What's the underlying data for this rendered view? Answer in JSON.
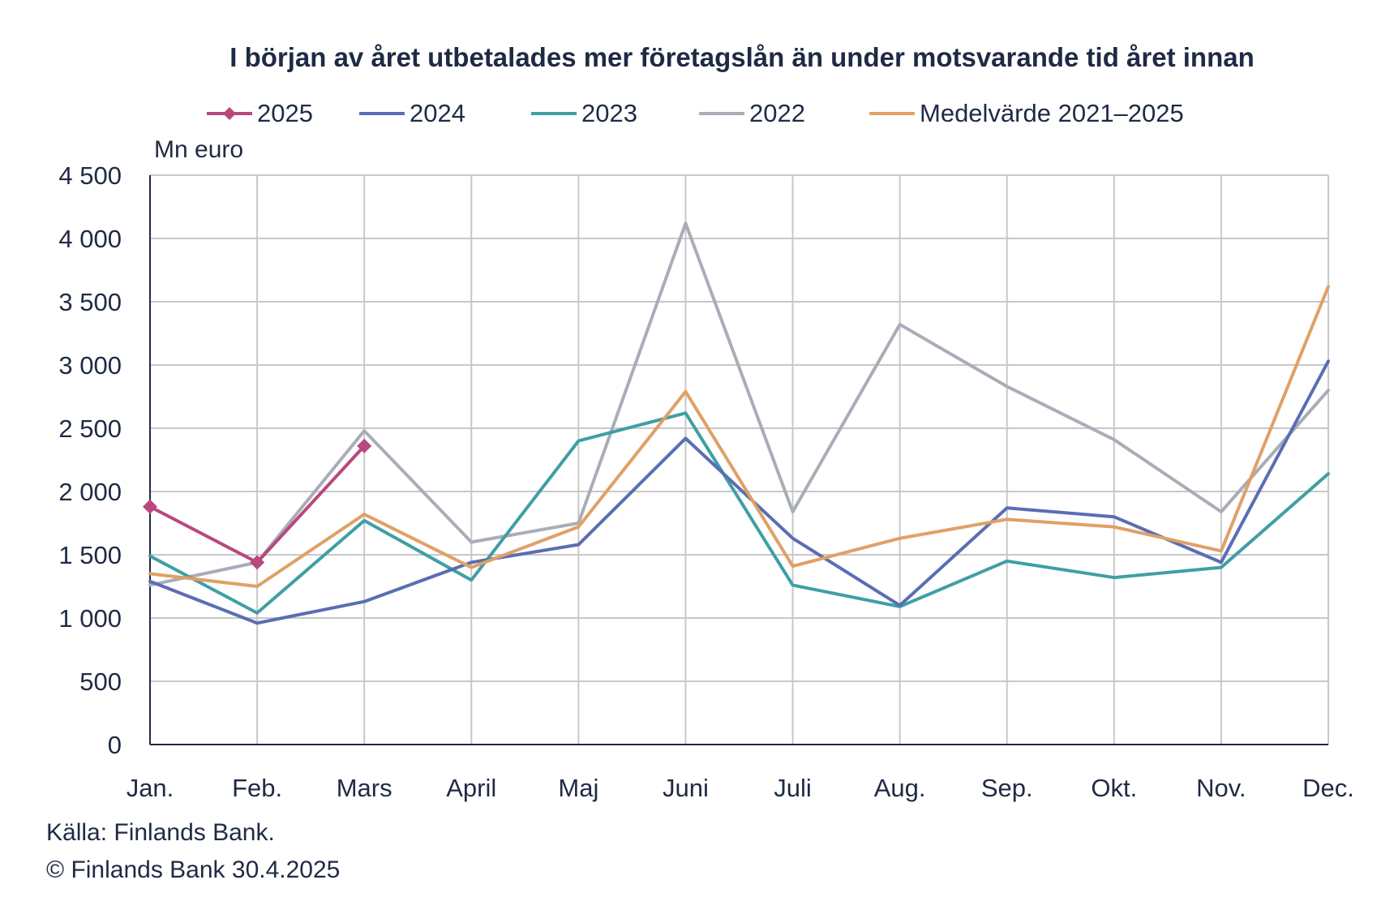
{
  "title": "I början av året utbetalades mer företagslån än under motsvarande tid året innan",
  "unit_label": "Mn euro",
  "source": "Källa: Finlands Bank.",
  "copyright": "© Finlands Bank 30.4.2025",
  "chart_data": {
    "type": "line",
    "title": "I början av året utbetalades mer företagslån än under motsvarande tid året innan",
    "ylabel": "Mn euro",
    "ylim": [
      0,
      4500
    ],
    "yticks": [
      0,
      500,
      1000,
      1500,
      2000,
      2500,
      3000,
      3500,
      4000,
      4500
    ],
    "ytick_labels": [
      "0",
      "500",
      "1 000",
      "1 500",
      "2 000",
      "2 500",
      "3 000",
      "3 500",
      "4 000",
      "4 500"
    ],
    "categories": [
      "Jan.",
      "Feb.",
      "Mars",
      "April",
      "Maj",
      "Juni",
      "Juli",
      "Aug.",
      "Sep.",
      "Okt.",
      "Nov.",
      "Dec."
    ],
    "grid": true,
    "legend_position": "top",
    "series": [
      {
        "name": "2025",
        "color": "#b8487d",
        "marker": "diamond",
        "values": [
          1880,
          1440,
          2360,
          null,
          null,
          null,
          null,
          null,
          null,
          null,
          null,
          null
        ]
      },
      {
        "name": "2024",
        "color": "#5b6db3",
        "marker": "none",
        "values": [
          1290,
          960,
          1130,
          1440,
          1580,
          2420,
          1630,
          1100,
          1870,
          1800,
          1440,
          3030
        ]
      },
      {
        "name": "2023",
        "color": "#3f9fa5",
        "marker": "none",
        "values": [
          1490,
          1040,
          1770,
          1300,
          2400,
          2620,
          1260,
          1090,
          1450,
          1320,
          1400,
          2140
        ]
      },
      {
        "name": "2022",
        "color": "#a8adb8",
        "marker": "none",
        "values": [
          1260,
          1440,
          2480,
          1600,
          1750,
          4120,
          1840,
          3320,
          2830,
          2410,
          1840,
          2800
        ]
      },
      {
        "name": "Medelvärde 2021–2025",
        "color": "#e0a066",
        "marker": "none",
        "values": [
          1350,
          1250,
          1820,
          1400,
          1720,
          2790,
          1410,
          1630,
          1780,
          1720,
          1530,
          3620
        ]
      }
    ]
  }
}
